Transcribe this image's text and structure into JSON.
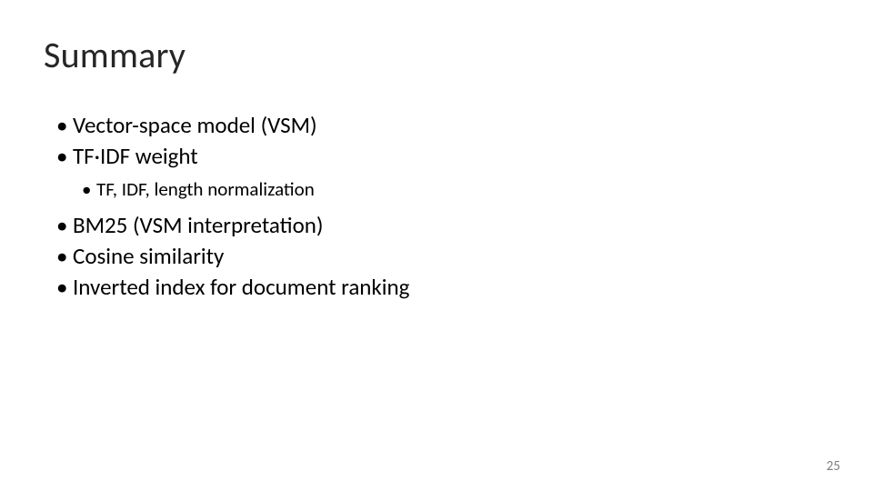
{
  "slide": {
    "title": "Summary",
    "bullets": [
      "Vector-space model (VSM)",
      "TF·IDF weight"
    ],
    "sub_bullets": [
      "TF, IDF, length normalization"
    ],
    "bullets_after": [
      "BM25 (VSM interpretation)",
      "Cosine similarity",
      "Inverted index for document ranking"
    ],
    "page_number": "25"
  },
  "style": {
    "background_color": "#ffffff",
    "title_color": "#262626",
    "title_fontsize": 40,
    "title_fontweight": 300,
    "body_color": "#000000",
    "bullet_fontsize": 25,
    "sub_bullet_fontsize": 21,
    "page_number_color": "#808080",
    "page_number_fontsize": 15,
    "font_family": "Calibri"
  }
}
